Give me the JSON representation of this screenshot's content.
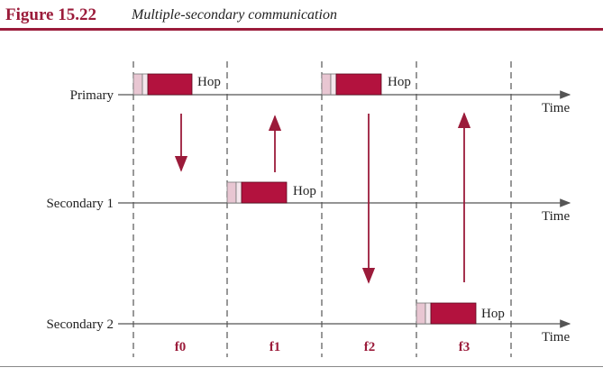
{
  "figure": {
    "number": "Figure 15.22",
    "caption": "Multiple-secondary communication"
  },
  "colors": {
    "accent": "#9b1b3a",
    "packet_fill": "#b3123e",
    "packet_header": "#e8c6d2",
    "line": "#555555"
  },
  "stations": [
    {
      "label": "Primary",
      "time_label": "Time"
    },
    {
      "label": "Secondary 1",
      "time_label": "Time"
    },
    {
      "label": "Secondary 2",
      "time_label": "Time"
    }
  ],
  "slots": [
    {
      "label": "f0",
      "sender": "Primary",
      "hop": "Hop",
      "direction": "down"
    },
    {
      "label": "f1",
      "sender": "Secondary 1",
      "hop": "Hop",
      "direction": "up"
    },
    {
      "label": "f2",
      "sender": "Primary",
      "hop": "Hop",
      "direction": "down"
    },
    {
      "label": "f3",
      "sender": "Secondary 2",
      "hop": "Hop",
      "direction": "up"
    }
  ]
}
